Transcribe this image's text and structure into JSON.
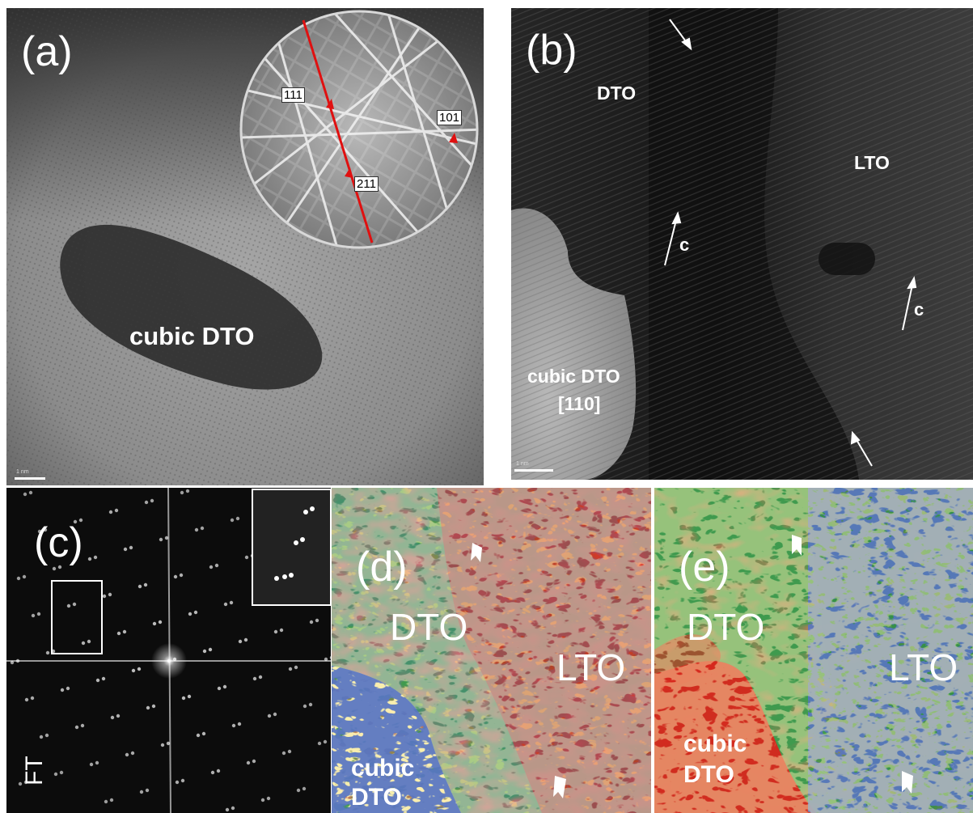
{
  "panel_a": {
    "label": "(a)",
    "phase_label": "cubic DTO",
    "kikuchi_indices": [
      "111",
      "101",
      "211"
    ],
    "scale_text": "1 nm"
  },
  "panel_b": {
    "label": "(b)",
    "dto_label": "DTO",
    "lto_label": "LTO",
    "c_axis_labels": [
      "c",
      "c"
    ],
    "cubic_label": "cubic DTO",
    "zone_axis": "[110]",
    "scale_text": "1 nm"
  },
  "panel_c": {
    "label": "(c)",
    "ft_label": "FT"
  },
  "panel_d": {
    "label": "(d)",
    "dto_label": "DTO",
    "lto_label": "LTO",
    "cubic_label_line1": "cubic",
    "cubic_label_line2": "DTO"
  },
  "panel_e": {
    "label": "(e)",
    "dto_label": "DTO",
    "lto_label": "LTO",
    "cubic_label_line1": "cubic",
    "cubic_label_line2": "DTO"
  },
  "colors": {
    "map_red": "#d8261c",
    "map_green": "#3f9a4e",
    "map_blue": "#1c2f8c",
    "map_yellow": "#f4e27a",
    "kikuchi_line": "#e01010"
  }
}
